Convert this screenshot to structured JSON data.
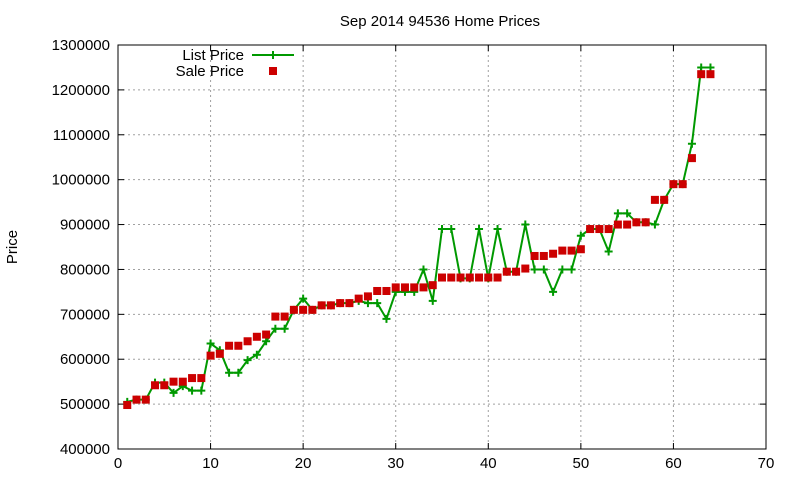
{
  "chart_data": {
    "type": "line",
    "title": "Sep 2014 94536 Home Prices",
    "xlabel": "",
    "ylabel": "Price",
    "xlim": [
      0,
      70
    ],
    "ylim": [
      400000,
      1300000
    ],
    "xticks": [
      "0",
      "10",
      "20",
      "30",
      "40",
      "50",
      "60",
      "70"
    ],
    "yticks": [
      "400000",
      "500000",
      "600000",
      "700000",
      "800000",
      "900000",
      "1000000",
      "1100000",
      "1200000",
      "1300000"
    ],
    "grid": true,
    "legend_position": "top-left",
    "series": [
      {
        "name": "List Price",
        "style": "line-with-plus-markers",
        "color": "#009900",
        "x": [
          1,
          2,
          3,
          4,
          5,
          6,
          7,
          8,
          9,
          10,
          11,
          12,
          13,
          14,
          15,
          16,
          17,
          18,
          19,
          20,
          21,
          22,
          23,
          24,
          25,
          26,
          27,
          28,
          29,
          30,
          31,
          32,
          33,
          34,
          35,
          36,
          37,
          38,
          39,
          40,
          41,
          42,
          43,
          44,
          45,
          46,
          47,
          48,
          49,
          50,
          51,
          52,
          53,
          54,
          55,
          56,
          57,
          58,
          59,
          60,
          61,
          62,
          63,
          64
        ],
        "y": [
          505000,
          510000,
          510000,
          548000,
          548000,
          525000,
          540000,
          530000,
          530000,
          635000,
          620000,
          570000,
          570000,
          598000,
          610000,
          640000,
          668000,
          668000,
          710000,
          735000,
          710000,
          720000,
          720000,
          725000,
          725000,
          730000,
          725000,
          725000,
          690000,
          750000,
          750000,
          750000,
          800000,
          730000,
          890000,
          890000,
          780000,
          780000,
          890000,
          780000,
          890000,
          795000,
          795000,
          900000,
          800000,
          800000,
          750000,
          800000,
          800000,
          875000,
          890000,
          890000,
          840000,
          925000,
          925000,
          905000,
          905000,
          900000,
          955000,
          990000,
          990000,
          1080000,
          1250000,
          1250000
        ]
      },
      {
        "name": "Sale Price",
        "style": "square-markers",
        "color": "#cc0000",
        "x": [
          1,
          2,
          3,
          4,
          5,
          6,
          7,
          8,
          9,
          10,
          11,
          12,
          13,
          14,
          15,
          16,
          17,
          18,
          19,
          20,
          21,
          22,
          23,
          24,
          25,
          26,
          27,
          28,
          29,
          30,
          31,
          32,
          33,
          34,
          35,
          36,
          37,
          38,
          39,
          40,
          41,
          42,
          43,
          44,
          45,
          46,
          47,
          48,
          49,
          50,
          51,
          52,
          53,
          54,
          55,
          56,
          57,
          58,
          59,
          60,
          61,
          62,
          63,
          64
        ],
        "y": [
          498000,
          510000,
          510000,
          542000,
          542000,
          550000,
          550000,
          558000,
          558000,
          608000,
          612000,
          630000,
          630000,
          640000,
          650000,
          655000,
          695000,
          695000,
          710000,
          710000,
          710000,
          720000,
          720000,
          725000,
          725000,
          735000,
          740000,
          752000,
          752000,
          760000,
          760000,
          760000,
          760000,
          765000,
          782000,
          782000,
          782000,
          782000,
          782000,
          782000,
          782000,
          795000,
          795000,
          802000,
          830000,
          830000,
          835000,
          842000,
          842000,
          845000,
          890000,
          890000,
          890000,
          900000,
          900000,
          905000,
          905000,
          955000,
          955000,
          990000,
          990000,
          1048000,
          1235000,
          1235000
        ]
      }
    ]
  }
}
